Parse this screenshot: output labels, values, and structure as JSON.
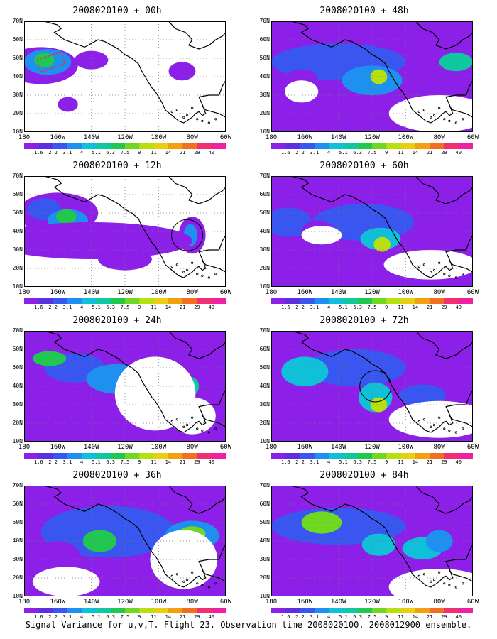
{
  "caption": "Signal Variance for u,v,T. Flight 23. Observation time 2008020100. 2008012900 ensemble.",
  "y_axis_labels": [
    "70N",
    "60N",
    "50N",
    "40N",
    "30N",
    "20N",
    "10N"
  ],
  "x_axis_labels": [
    "180",
    "160W",
    "140W",
    "120W",
    "100W",
    "80W",
    "60W"
  ],
  "colorbar_labels": [
    "1.6",
    "2.2",
    "3.1",
    "4",
    "5.1",
    "6.3",
    "7.5",
    "9",
    "11",
    "14",
    "21",
    "29",
    "40"
  ],
  "colorbar_colors": [
    "#8c20e8",
    "#5a30e0",
    "#3a56f0",
    "#1e90f0",
    "#10c0d8",
    "#10c8a0",
    "#20c850",
    "#70d820",
    "#b8e010",
    "#e8d010",
    "#f0a010",
    "#f07020",
    "#f03070",
    "#f020a0"
  ],
  "panels": [
    {
      "title": "2008020100 + 00h",
      "observation_marker": "red-dotted-box"
    },
    {
      "title": "2008020100 + 12h",
      "observation_marker": "circle"
    },
    {
      "title": "2008020100 + 24h"
    },
    {
      "title": "2008020100 + 36h"
    },
    {
      "title": "2008020100 + 48h"
    },
    {
      "title": "2008020100 + 60h"
    },
    {
      "title": "2008020100 + 72h",
      "observation_marker": "circle"
    },
    {
      "title": "2008020100 + 84h"
    }
  ]
}
